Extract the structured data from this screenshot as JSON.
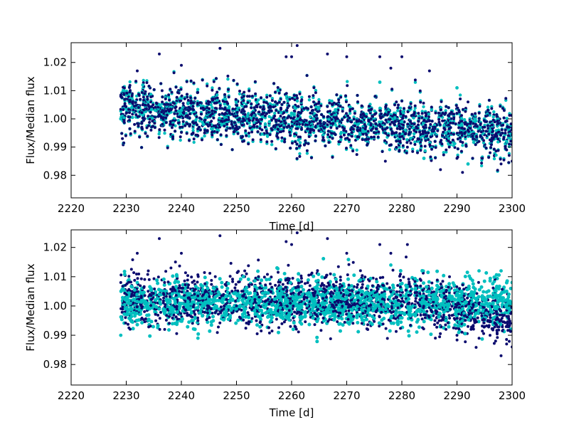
{
  "chart_data": [
    {
      "type": "scatter",
      "xlabel": "Time [d]",
      "ylabel": "Flux/Median flux",
      "xlim": [
        2220,
        2300
      ],
      "ylim": [
        0.972,
        1.027
      ],
      "xticks": [
        "2220",
        "2230",
        "2240",
        "2250",
        "2260",
        "2270",
        "2280",
        "2290",
        "2300"
      ],
      "yticks": [
        "0.98",
        "0.99",
        "1.00",
        "1.01",
        "1.02"
      ],
      "grid": false,
      "colors": {
        "raw": "#0b0b6e",
        "corrected": "#00bfbf"
      },
      "series": [
        {
          "role": "raw",
          "points": [
            [
              2229.0,
              1.008
            ],
            [
              2229.3,
              0.993
            ],
            [
              2230.0,
              1.002
            ],
            [
              2231.5,
              0.998
            ],
            [
              2232.0,
              1.017
            ],
            [
              2233.0,
              1.005
            ],
            [
              2234.5,
              0.996
            ],
            [
              2236.0,
              1.023
            ],
            [
              2236.5,
              1.01
            ],
            [
              2238.0,
              0.999
            ],
            [
              2240.0,
              1.019
            ],
            [
              2241.5,
              1.004
            ],
            [
              2243.0,
              0.994
            ],
            [
              2245.0,
              1.006
            ],
            [
              2247.0,
              1.025
            ],
            [
              2248.0,
              1.002
            ],
            [
              2250.0,
              0.997
            ],
            [
              2252.0,
              1.008
            ],
            [
              2254.0,
              0.999
            ],
            [
              2256.0,
              1.003
            ],
            [
              2258.0,
              1.001
            ],
            [
              2259.0,
              1.022
            ],
            [
              2260.0,
              1.022
            ],
            [
              2261.0,
              1.026
            ],
            [
              2262.0,
              0.998
            ],
            [
              2264.0,
              1.006
            ],
            [
              2266.5,
              1.023
            ],
            [
              2268.0,
              1.0
            ],
            [
              2270.0,
              1.022
            ],
            [
              2272.0,
              0.997
            ],
            [
              2274.0,
              1.003
            ],
            [
              2276.0,
              1.022
            ],
            [
              2277.0,
              0.985
            ],
            [
              2278.0,
              1.018
            ],
            [
              2279.0,
              1.006
            ],
            [
              2280.0,
              1.022
            ],
            [
              2281.0,
              0.99
            ],
            [
              2283.0,
              1.002
            ],
            [
              2285.0,
              1.017
            ],
            [
              2287.0,
              0.982
            ],
            [
              2288.0,
              0.995
            ],
            [
              2290.0,
              0.986
            ],
            [
              2291.0,
              0.981
            ],
            [
              2292.0,
              1.006
            ],
            [
              2294.0,
              0.992
            ],
            [
              2296.0,
              0.988
            ],
            [
              2298.0,
              0.984
            ],
            [
              2299.0,
              0.989
            ],
            [
              2300.0,
              0.985
            ]
          ]
        },
        {
          "role": "corrected",
          "points": [
            [
              2229.0,
              1.0
            ],
            [
              2231.0,
              1.004
            ],
            [
              2233.0,
              1.012
            ],
            [
              2236.0,
              1.005
            ],
            [
              2240.0,
              1.003
            ],
            [
              2244.0,
              0.998
            ],
            [
              2248.0,
              1.007
            ],
            [
              2252.0,
              1.001
            ],
            [
              2256.0,
              0.999
            ],
            [
              2260.0,
              1.002
            ],
            [
              2264.0,
              1.0
            ],
            [
              2268.0,
              1.003
            ],
            [
              2272.0,
              0.998
            ],
            [
              2276.0,
              1.013
            ],
            [
              2280.0,
              0.999
            ],
            [
              2284.0,
              0.986
            ],
            [
              2288.0,
              0.995
            ],
            [
              2290.0,
              1.011
            ],
            [
              2292.0,
              0.984
            ],
            [
              2296.0,
              0.996
            ],
            [
              2299.0,
              0.992
            ]
          ]
        }
      ]
    },
    {
      "type": "scatter",
      "xlabel": "Time [d]",
      "ylabel": "Flux/Median flux",
      "xlim": [
        2220,
        2300
      ],
      "ylim": [
        0.973,
        1.026
      ],
      "xticks": [
        "2220",
        "2230",
        "2240",
        "2250",
        "2260",
        "2270",
        "2280",
        "2290",
        "2300"
      ],
      "yticks": [
        "0.98",
        "0.99",
        "1.00",
        "1.01",
        "1.02"
      ],
      "grid": false,
      "colors": {
        "raw": "#0b0b6e",
        "corrected": "#00bfbf"
      },
      "series": [
        {
          "role": "raw",
          "points": [
            [
              2229.0,
              1.008
            ],
            [
              2231.0,
              1.004
            ],
            [
              2232.0,
              1.018
            ],
            [
              2234.0,
              1.012
            ],
            [
              2236.0,
              1.023
            ],
            [
              2240.0,
              1.018
            ],
            [
              2243.0,
              0.995
            ],
            [
              2247.0,
              1.024
            ],
            [
              2250.0,
              1.0
            ],
            [
              2254.0,
              1.01
            ],
            [
              2259.0,
              1.022
            ],
            [
              2260.0,
              1.021
            ],
            [
              2261.0,
              1.025
            ],
            [
              2264.0,
              1.004
            ],
            [
              2266.5,
              1.023
            ],
            [
              2270.0,
              1.018
            ],
            [
              2274.0,
              1.0
            ],
            [
              2276.0,
              1.021
            ],
            [
              2278.0,
              1.018
            ],
            [
              2280.0,
              1.0
            ],
            [
              2281.0,
              1.021
            ],
            [
              2284.0,
              0.997
            ],
            [
              2286.0,
              0.995
            ],
            [
              2288.0,
              0.992
            ],
            [
              2290.0,
              0.99
            ],
            [
              2292.0,
              0.993
            ],
            [
              2294.0,
              0.989
            ],
            [
              2296.0,
              0.99
            ],
            [
              2297.0,
              0.988
            ],
            [
              2298.0,
              0.983
            ],
            [
              2299.0,
              0.987
            ],
            [
              2300.0,
              0.986
            ]
          ]
        },
        {
          "role": "corrected",
          "points": [
            [
              2229.0,
              0.99
            ],
            [
              2230.0,
              1.002
            ],
            [
              2232.0,
              1.008
            ],
            [
              2234.0,
              0.995
            ],
            [
              2236.0,
              1.004
            ],
            [
              2238.0,
              0.999
            ],
            [
              2240.0,
              1.003
            ],
            [
              2243.0,
              0.989
            ],
            [
              2246.0,
              1.006
            ],
            [
              2250.0,
              0.999
            ],
            [
              2254.0,
              1.002
            ],
            [
              2258.0,
              0.998
            ],
            [
              2262.0,
              1.004
            ],
            [
              2266.0,
              0.997
            ],
            [
              2270.0,
              1.003
            ],
            [
              2274.0,
              0.999
            ],
            [
              2278.0,
              1.014
            ],
            [
              2282.0,
              1.0
            ],
            [
              2286.0,
              1.004
            ],
            [
              2290.0,
              0.998
            ],
            [
              2294.0,
              1.012
            ],
            [
              2298.0,
              1.012
            ],
            [
              2300.0,
              1.008
            ]
          ]
        }
      ]
    }
  ]
}
